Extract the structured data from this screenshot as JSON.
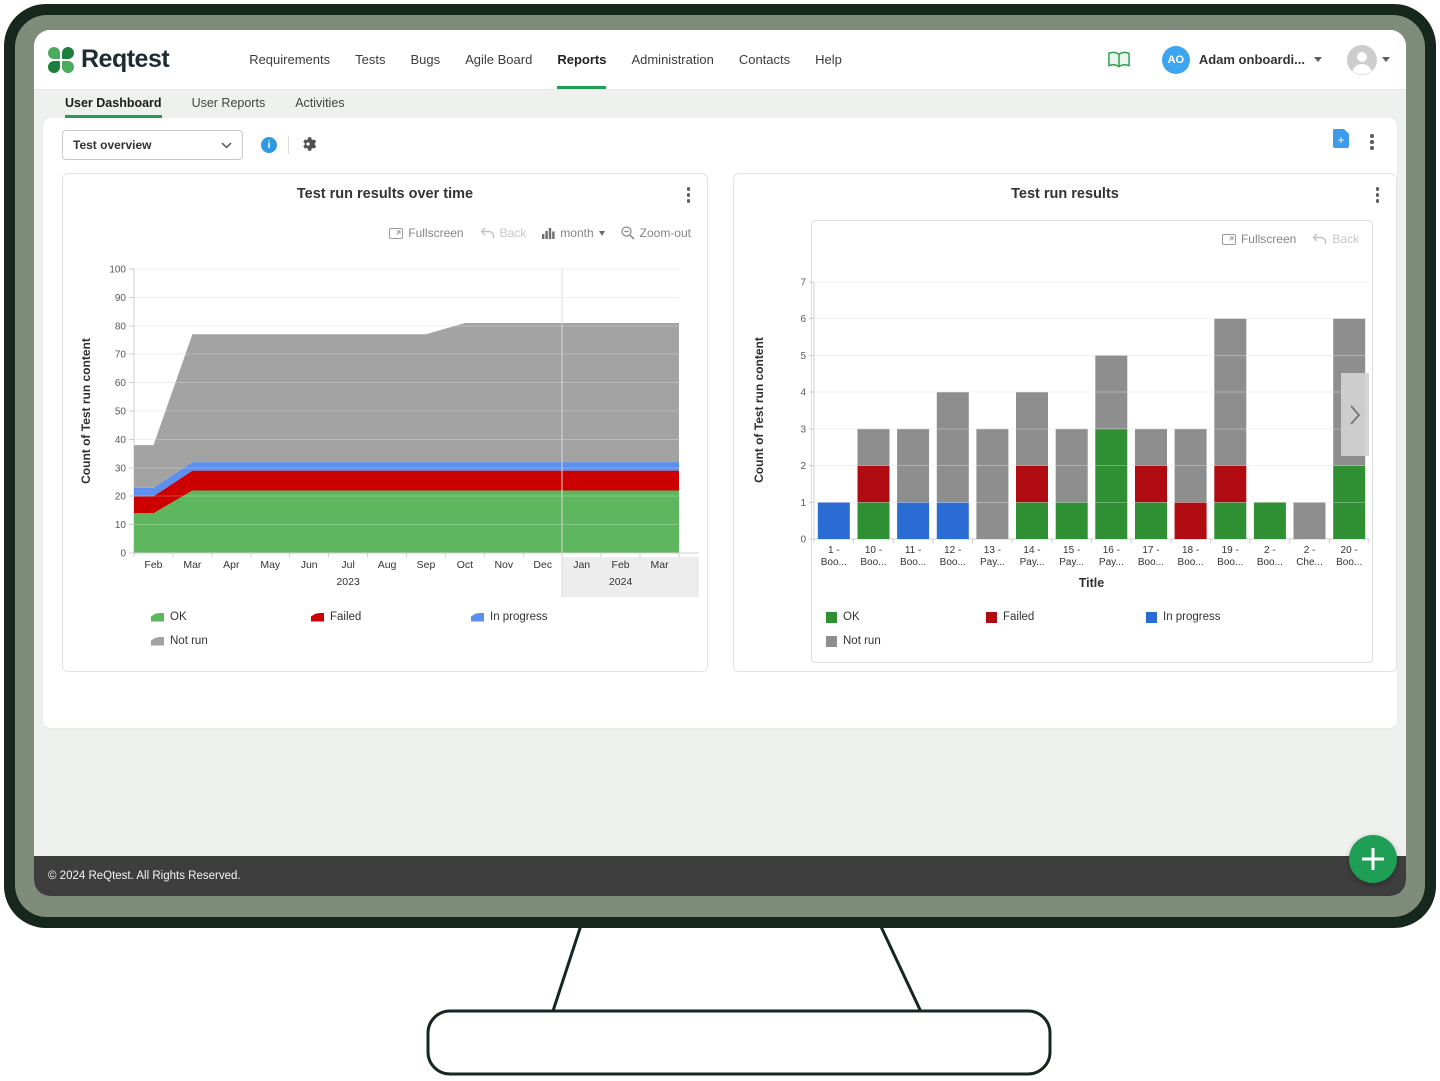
{
  "navbar": {
    "logo_text": "Reqtest",
    "items": [
      "Requirements",
      "Tests",
      "Bugs",
      "Agile Board",
      "Reports",
      "Administration",
      "Contacts",
      "Help"
    ],
    "active_item": "Reports",
    "account_initials": "AO",
    "account_name": "Adam onboardi..."
  },
  "tabs": {
    "items": [
      "User Dashboard",
      "User Reports",
      "Activities"
    ],
    "active": "User Dashboard"
  },
  "dashboard": {
    "report_select_value": "Test overview"
  },
  "footer": {
    "copyright": "© 2024 ReQtest. All Rights Reserved."
  },
  "colors": {
    "brand_green": "#1f9e55",
    "logo_green": "#2f9e4e",
    "info_blue": "#2f9ae3",
    "export_blue": "#3d9be9",
    "avatar_blue": "#3da5f0",
    "footer_bg": "#3e3e3e",
    "frame_dark": "#16281e",
    "bezel_sage": "#7f8c7a"
  },
  "chart_data": [
    {
      "type": "area",
      "stacked": true,
      "title": "Test run results over time",
      "toolbar": [
        {
          "label": "Fullscreen",
          "icon": "fullscreen"
        },
        {
          "label": "Back",
          "icon": "back",
          "disabled": true
        },
        {
          "label": "month",
          "icon": "bars",
          "caret": true
        },
        {
          "label": "Zoom-out",
          "icon": "zoom-out"
        }
      ],
      "ylabel": "Count of Test run content",
      "ylim": [
        0,
        100
      ],
      "ytick_step": 10,
      "categories": [
        "Feb",
        "Mar",
        "Apr",
        "May",
        "Jun",
        "Jul",
        "Aug",
        "Sep",
        "Oct",
        "Nov",
        "Dec",
        "Jan",
        "Feb",
        "Mar"
      ],
      "year_groups": [
        {
          "label": "2023",
          "from": 0,
          "to": 10,
          "highlight": false
        },
        {
          "label": "2024",
          "from": 11,
          "to": 13,
          "highlight": true
        }
      ],
      "series": [
        {
          "name": "OK",
          "color": "#5eb75e",
          "values": [
            14,
            22,
            22,
            22,
            22,
            22,
            22,
            22,
            22,
            22,
            22,
            22,
            22,
            22
          ]
        },
        {
          "name": "Failed",
          "color": "#cc0001",
          "values": [
            6,
            7,
            7,
            7,
            7,
            7,
            7,
            7,
            7,
            7,
            7,
            7,
            7,
            7
          ]
        },
        {
          "name": "In progress",
          "color": "#5b8ff0",
          "values": [
            3,
            3,
            3,
            3,
            3,
            3,
            3,
            3,
            3,
            3,
            3,
            3,
            3,
            3
          ]
        },
        {
          "name": "Not run",
          "color": "#a3a3a3",
          "values": [
            15,
            45,
            45,
            45,
            45,
            45,
            45,
            45,
            49,
            49,
            49,
            49,
            49,
            49
          ]
        }
      ],
      "legend_position": "bottom"
    },
    {
      "type": "bar",
      "stacked": true,
      "title": "Test run results",
      "toolbar": [
        {
          "label": "Fullscreen",
          "icon": "fullscreen"
        },
        {
          "label": "Back",
          "icon": "back",
          "disabled": true
        }
      ],
      "ylabel": "Count of Test run content",
      "xlabel": "Title",
      "ylim": [
        0,
        7
      ],
      "ytick_step": 1,
      "categories": [
        "1 - Boo...",
        "10 - Boo...",
        "11 - Boo...",
        "12 - Boo...",
        "13 - Pay...",
        "14 - Pay...",
        "15 - Pay...",
        "16 - Pay...",
        "17 - Boo...",
        "18 - Boo...",
        "19 - Boo...",
        "2 - Boo...",
        "2 - Che...",
        "20 - Boo..."
      ],
      "series": [
        {
          "name": "OK",
          "color": "#2e8f33",
          "values": [
            0,
            1,
            0,
            0,
            0,
            1,
            1,
            3,
            1,
            0,
            1,
            1,
            0,
            2
          ]
        },
        {
          "name": "Failed",
          "color": "#b00b10",
          "values": [
            0,
            1,
            0,
            0,
            0,
            1,
            0,
            0,
            1,
            1,
            1,
            0,
            0,
            0
          ]
        },
        {
          "name": "In progress",
          "color": "#2b6bd4",
          "values": [
            1,
            0,
            1,
            1,
            0,
            0,
            0,
            0,
            0,
            0,
            0,
            0,
            0,
            0
          ]
        },
        {
          "name": "Not run",
          "color": "#8e8e8e",
          "values": [
            0,
            1,
            2,
            3,
            3,
            2,
            2,
            2,
            1,
            2,
            4,
            0,
            1,
            4
          ]
        }
      ],
      "has_next_page_arrow": true,
      "legend_position": "bottom"
    }
  ]
}
